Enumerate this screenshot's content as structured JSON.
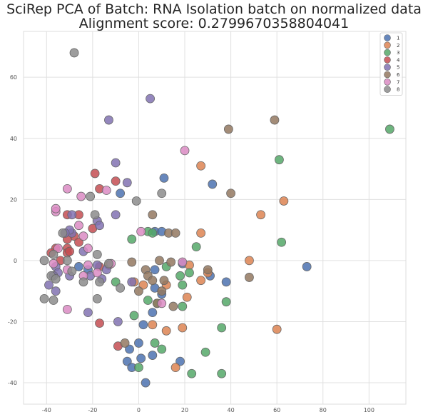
{
  "chart_data": {
    "type": "scatter",
    "title": "SciRep PCA of Batch: RNA Isolation batch on normalized data",
    "subtitle": "Alignment score: 0.2799670358804041",
    "xlabel": "",
    "ylabel": "",
    "xlim": [
      -50,
      116
    ],
    "ylim": [
      -47,
      75
    ],
    "xticks": [
      -40,
      -20,
      0,
      20,
      40,
      60,
      80,
      100
    ],
    "yticks": [
      -40,
      -20,
      0,
      20,
      40,
      60
    ],
    "grid": true,
    "legend_position": "top-right",
    "series": [
      {
        "name": "1",
        "color": "#4c72b0",
        "points": [
          [
            11,
            27
          ],
          [
            32,
            25
          ],
          [
            -8,
            22
          ],
          [
            7,
            9.5
          ],
          [
            10,
            9.5
          ],
          [
            73,
            -2
          ],
          [
            7,
            -3
          ],
          [
            -26,
            -2
          ],
          [
            31,
            -5
          ],
          [
            38,
            -7
          ],
          [
            -22,
            -3
          ],
          [
            7,
            -9
          ],
          [
            10,
            -11
          ],
          [
            6,
            -17
          ],
          [
            2,
            -21
          ],
          [
            0,
            -27
          ],
          [
            1,
            -32
          ],
          [
            -5,
            -33
          ],
          [
            -3,
            -35
          ],
          [
            6,
            -31
          ],
          [
            18,
            -33
          ],
          [
            3,
            -40
          ],
          [
            19,
            -1
          ],
          [
            -4,
            -29
          ]
        ]
      },
      {
        "name": "2",
        "color": "#dd8452",
        "points": [
          [
            27,
            31
          ],
          [
            63,
            19.5
          ],
          [
            53,
            15
          ],
          [
            27,
            9
          ],
          [
            48,
            0
          ],
          [
            22,
            -1.5
          ],
          [
            -13,
            -1.5
          ],
          [
            30,
            -4
          ],
          [
            27,
            -6.5
          ],
          [
            12,
            -8
          ],
          [
            -2,
            -7
          ],
          [
            2,
            -8
          ],
          [
            21,
            -12
          ],
          [
            12,
            -23
          ],
          [
            19,
            -22
          ],
          [
            6,
            -21
          ],
          [
            60,
            -22.5
          ],
          [
            16,
            -35
          ]
        ]
      },
      {
        "name": "3",
        "color": "#55a868",
        "points": [
          [
            109,
            43
          ],
          [
            61,
            33
          ],
          [
            62,
            6
          ],
          [
            25,
            4.5
          ],
          [
            -3,
            7
          ],
          [
            4,
            9.5
          ],
          [
            6,
            9
          ],
          [
            12,
            -2
          ],
          [
            22,
            -4
          ],
          [
            18,
            -5
          ],
          [
            -10,
            -7
          ],
          [
            4,
            -13
          ],
          [
            8,
            -14
          ],
          [
            19,
            -8
          ],
          [
            19,
            -15
          ],
          [
            38,
            -13.5
          ],
          [
            36,
            -22
          ],
          [
            -2,
            -18
          ],
          [
            7,
            -27
          ],
          [
            10,
            -29
          ],
          [
            29,
            -30
          ],
          [
            36,
            -37
          ],
          [
            23,
            -37
          ],
          [
            0,
            -35
          ]
        ]
      },
      {
        "name": "4",
        "color": "#c44e52",
        "points": [
          [
            -19,
            28.5
          ],
          [
            -10,
            26
          ],
          [
            -17,
            23.5
          ],
          [
            -31,
            15
          ],
          [
            -26,
            15
          ],
          [
            -32,
            9
          ],
          [
            -28,
            8
          ],
          [
            -31,
            7
          ],
          [
            -26,
            6
          ],
          [
            -31,
            4
          ],
          [
            -36,
            4
          ],
          [
            -38,
            2.5
          ],
          [
            -31,
            2.5
          ],
          [
            -34,
            0
          ],
          [
            -17,
            -2
          ],
          [
            -30,
            3
          ],
          [
            -17,
            -20.5
          ],
          [
            -9,
            -28
          ],
          [
            -20,
            10.5
          ]
        ]
      },
      {
        "name": "5",
        "color": "#8172b2",
        "points": [
          [
            5,
            53
          ],
          [
            -13,
            46
          ],
          [
            -10,
            32
          ],
          [
            -5,
            25.5
          ],
          [
            -18,
            13
          ],
          [
            -17,
            11.5
          ],
          [
            -10,
            15
          ],
          [
            -24,
            3
          ],
          [
            -29,
            9
          ],
          [
            -30,
            10
          ],
          [
            -32,
            9
          ],
          [
            -29,
            15
          ],
          [
            -36,
            -2
          ],
          [
            -35,
            -4
          ],
          [
            -37,
            -5
          ],
          [
            -30,
            -5
          ],
          [
            -39,
            -8
          ],
          [
            -36,
            -10
          ],
          [
            -18,
            -1.5
          ],
          [
            -14,
            -3
          ],
          [
            -21,
            -5
          ],
          [
            -16,
            -6
          ],
          [
            -3,
            -7
          ],
          [
            -9,
            -20
          ],
          [
            -22,
            -17
          ]
        ]
      },
      {
        "name": "6",
        "color": "#937860",
        "points": [
          [
            39,
            43
          ],
          [
            59,
            46
          ],
          [
            40,
            22
          ],
          [
            6,
            15
          ],
          [
            13,
            9
          ],
          [
            16,
            9
          ],
          [
            -3,
            -0.5
          ],
          [
            9,
            0
          ],
          [
            14,
            -0.5
          ],
          [
            3,
            -3
          ],
          [
            4,
            -5
          ],
          [
            30,
            -3
          ],
          [
            48,
            -5.5
          ],
          [
            6,
            -6.5
          ],
          [
            11,
            -6.5
          ],
          [
            0,
            -10
          ],
          [
            10,
            -10
          ],
          [
            15,
            -15
          ],
          [
            8,
            -14
          ],
          [
            -6,
            -27
          ]
        ]
      },
      {
        "name": "7",
        "color": "#da8bc3",
        "points": [
          [
            20,
            36
          ],
          [
            -36,
            16
          ],
          [
            -36,
            17
          ],
          [
            -25,
            21
          ],
          [
            -31,
            23.5
          ],
          [
            -14,
            23
          ],
          [
            -26,
            11.5
          ],
          [
            -24,
            8
          ],
          [
            1,
            9.5
          ],
          [
            -35,
            4
          ],
          [
            -37,
            -1
          ],
          [
            -22,
            -1.5
          ],
          [
            -18,
            -4
          ],
          [
            -22,
            4
          ],
          [
            -24,
            -5
          ],
          [
            -31,
            -3
          ],
          [
            -31,
            -16
          ],
          [
            -12,
            -1
          ],
          [
            19,
            -0.5
          ],
          [
            10,
            -14
          ]
        ]
      },
      {
        "name": "8",
        "color": "#8c8c8c",
        "points": [
          [
            -28,
            68
          ],
          [
            -21,
            21
          ],
          [
            -1,
            19.5
          ],
          [
            10,
            22
          ],
          [
            -13,
            -1
          ],
          [
            -19,
            15
          ],
          [
            -33,
            9
          ],
          [
            -41,
            0
          ],
          [
            -37,
            2
          ],
          [
            -31,
            0
          ],
          [
            -29,
            -3.5
          ],
          [
            -38,
            -5
          ],
          [
            -36,
            -6
          ],
          [
            -24,
            -7
          ],
          [
            -17,
            -7
          ],
          [
            -8,
            -9
          ],
          [
            -41,
            -12.5
          ],
          [
            -37,
            -13
          ],
          [
            -18,
            -12.5
          ],
          [
            -18,
            2
          ]
        ]
      }
    ]
  }
}
